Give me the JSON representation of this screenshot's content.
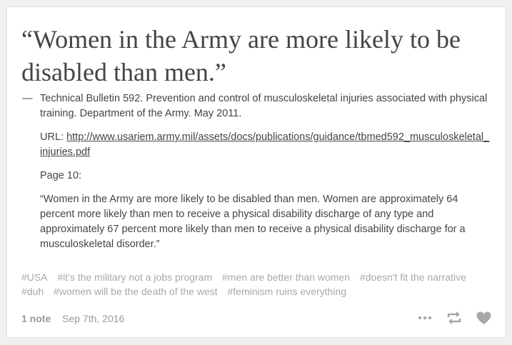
{
  "post": {
    "quote": "“Women in the Army are more likely to be disabled than men.”",
    "source": {
      "dash": "—",
      "citation": "Technical Bulletin 592.  Prevention and control of musculoskeletal injuries associated with physical training. Department of the Army. May 2011.",
      "url_prefix": "URL: ",
      "url": "http://www.usariem.army.mil/assets/docs/publications/guidance/tbmed592_musculoskeletal_injuries.pdf",
      "page": "Page 10:",
      "excerpt": "“Women in the Army are more likely to be disabled than men. Women are approximately 64 percent more likely than men to receive a physical disability discharge of any type and approximately 67 percent more likely than men to receive a physical disability discharge for a musculoskeletal disorder.”"
    },
    "tags": [
      "#USA",
      "#it's the military not a jobs program",
      "#men are better than women",
      "#doesn't fit the narrative",
      "#duh",
      "#women will be the death of the west",
      "#feminism ruins everything"
    ],
    "footer": {
      "notes": "1 note",
      "date": "Sep 7th, 2016"
    },
    "icons": {
      "more": "more-icon",
      "reblog": "reblog-icon",
      "like": "heart-icon"
    },
    "colors": {
      "text": "#444444",
      "muted": "#a8a8a8",
      "icon": "#a7a7a7"
    }
  }
}
